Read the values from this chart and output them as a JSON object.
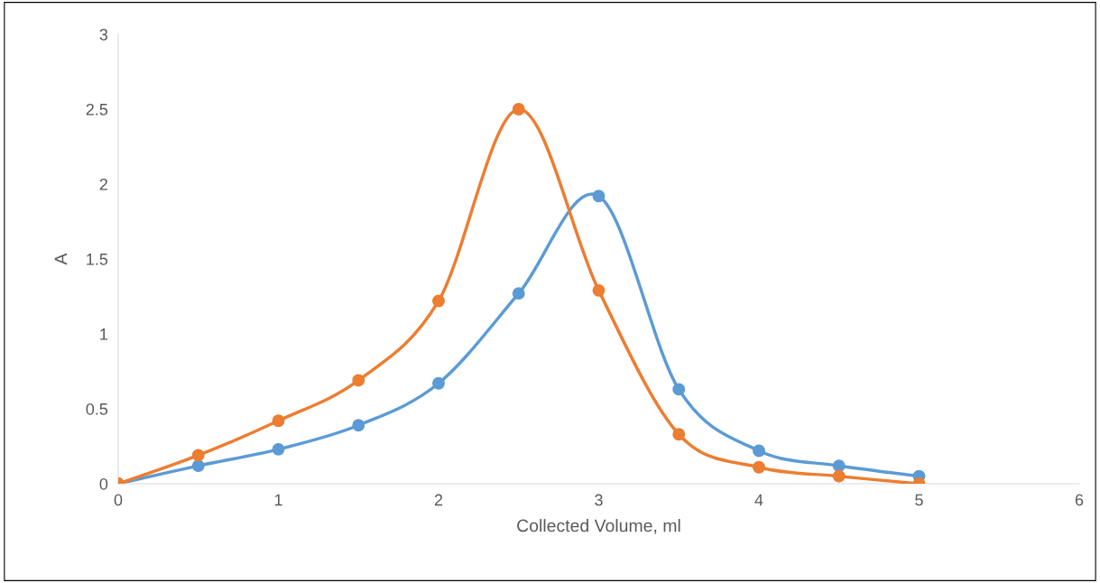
{
  "chart_data": {
    "type": "line",
    "xlabel": "Collected Volume, ml",
    "ylabel": "A",
    "x": [
      0,
      0.5,
      1,
      1.5,
      2,
      2.5,
      3,
      3.5,
      4,
      4.5,
      5
    ],
    "series": [
      {
        "color": "#5b9bd5",
        "values": [
          0,
          0.12,
          0.23,
          0.39,
          0.67,
          1.27,
          1.92,
          0.63,
          0.22,
          0.12,
          0.05
        ]
      },
      {
        "color": "#ed7d31",
        "values": [
          0,
          0.19,
          0.42,
          0.69,
          1.22,
          2.5,
          1.29,
          0.33,
          0.11,
          0.05,
          0
        ]
      }
    ],
    "xlim": [
      0,
      6
    ],
    "xticks": [
      0,
      1,
      2,
      3,
      4,
      5,
      6
    ],
    "ylim": [
      0,
      3
    ],
    "yticks": [
      0,
      0.5,
      1,
      1.5,
      2,
      2.5,
      3
    ],
    "grid": false,
    "marker": "circle",
    "line_style": "solid"
  }
}
